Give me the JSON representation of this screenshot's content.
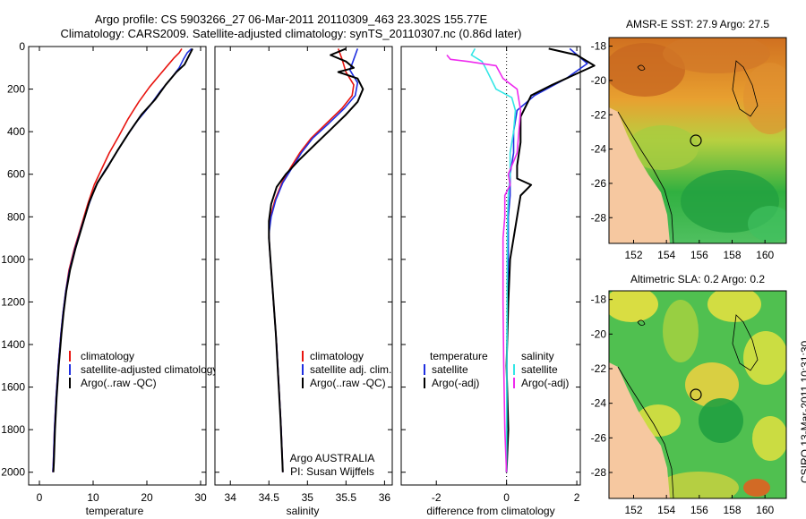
{
  "title_line1": "Argo profile: CS 5903266_27 06-Mar-2011 20110309_463 23.302S 155.77E",
  "title_line2": "Climatology: CARS2009. Satellite-adjusted climatology: synTS_20110307.nc (0.86d later)",
  "stamp": "CSIRO 13-Mar-2011 10:31:30",
  "colors": {
    "red": "#e8140f",
    "blue": "#1f2fe0",
    "black": "#000000",
    "cyan": "#33e6e6",
    "magenta": "#ee2bee",
    "land": "#f6c8a0"
  },
  "chart_data": [
    {
      "type": "line",
      "id": "temperature",
      "xlabel": "temperature",
      "ylabel": "",
      "xlim": [
        -2,
        31
      ],
      "ylim": [
        2060,
        0
      ],
      "xticks": [
        0,
        10,
        20,
        30
      ],
      "yticks": [
        0,
        200,
        400,
        600,
        800,
        1000,
        1200,
        1400,
        1600,
        1800,
        2000
      ],
      "legend": [
        "climatology",
        "satellite-adjusted climatology",
        "Argo(..raw -QC)"
      ],
      "series": [
        {
          "name": "climatology",
          "color": "red",
          "points": [
            [
              26.5,
              10
            ],
            [
              26,
              30
            ],
            [
              25,
              55
            ],
            [
              24,
              85
            ],
            [
              22.5,
              130
            ],
            [
              20.5,
              190
            ],
            [
              18.5,
              260
            ],
            [
              16.5,
              340
            ],
            [
              14.8,
              420
            ],
            [
              13,
              500
            ],
            [
              11.5,
              580
            ],
            [
              10.2,
              650
            ],
            [
              9,
              740
            ],
            [
              7.7,
              850
            ],
            [
              6.5,
              950
            ],
            [
              5.5,
              1050
            ],
            [
              4.9,
              1150
            ],
            [
              4.4,
              1250
            ],
            [
              4,
              1350
            ],
            [
              3.5,
              1500
            ],
            [
              3.1,
              1650
            ],
            [
              2.8,
              1800
            ],
            [
              2.6,
              1950
            ],
            [
              2.5,
              2000
            ]
          ]
        },
        {
          "name": "satellite-adjusted climatology",
          "color": "blue",
          "points": [
            [
              28.3,
              10
            ],
            [
              27.5,
              30
            ],
            [
              26.8,
              60
            ],
            [
              26,
              100
            ],
            [
              24.5,
              150
            ],
            [
              22.5,
              210
            ],
            [
              20.5,
              280
            ],
            [
              18.2,
              350
            ],
            [
              16,
              430
            ],
            [
              13.8,
              520
            ],
            [
              12,
              590
            ],
            [
              10.4,
              660
            ],
            [
              9.1,
              750
            ],
            [
              7.8,
              850
            ],
            [
              6.6,
              950
            ],
            [
              5.6,
              1050
            ],
            [
              4.9,
              1150
            ],
            [
              4.4,
              1250
            ],
            [
              4,
              1350
            ],
            [
              3.5,
              1500
            ],
            [
              3.1,
              1650
            ],
            [
              2.8,
              1800
            ],
            [
              2.6,
              1950
            ],
            [
              2.5,
              2000
            ]
          ]
        },
        {
          "name": "Argo(..raw -QC)",
          "color": "black",
          "points": [
            [
              28.5,
              10
            ],
            [
              28,
              35
            ],
            [
              27.5,
              60
            ],
            [
              27,
              85
            ],
            [
              25.5,
              120
            ],
            [
              23.5,
              180
            ],
            [
              21.5,
              250
            ],
            [
              19,
              320
            ],
            [
              16.8,
              400
            ],
            [
              14.5,
              490
            ],
            [
              12.6,
              570
            ],
            [
              10.8,
              640
            ],
            [
              9.3,
              730
            ],
            [
              8,
              840
            ],
            [
              6.7,
              950
            ],
            [
              5.7,
              1050
            ],
            [
              5,
              1150
            ],
            [
              4.5,
              1250
            ],
            [
              4.1,
              1350
            ],
            [
              3.6,
              1500
            ],
            [
              3.2,
              1650
            ],
            [
              2.9,
              1800
            ],
            [
              2.7,
              1950
            ],
            [
              2.6,
              2000
            ]
          ]
        }
      ]
    },
    {
      "type": "line",
      "id": "salinity",
      "xlabel": "salinity",
      "ylabel": "",
      "xlim": [
        33.8,
        36.1
      ],
      "ylim": [
        2060,
        0
      ],
      "xticks": [
        34,
        34.5,
        35,
        35.5,
        36
      ],
      "legend": [
        "climatology",
        "satellite adj. clim.",
        "Argo(..raw -QC)"
      ],
      "annotation": [
        "Argo AUSTRALIA",
        "PI: Susan Wijffels"
      ],
      "series": [
        {
          "name": "climatology",
          "color": "red",
          "points": [
            [
              35.4,
              10
            ],
            [
              35.45,
              60
            ],
            [
              35.5,
              120
            ],
            [
              35.6,
              180
            ],
            [
              35.58,
              230
            ],
            [
              35.45,
              290
            ],
            [
              35.25,
              360
            ],
            [
              35.05,
              430
            ],
            [
              34.9,
              500
            ],
            [
              34.78,
              570
            ],
            [
              34.67,
              640
            ],
            [
              34.58,
              720
            ],
            [
              34.52,
              800
            ],
            [
              34.5,
              880
            ],
            [
              34.51,
              950
            ],
            [
              34.53,
              1050
            ],
            [
              34.56,
              1200
            ],
            [
              34.6,
              1400
            ],
            [
              34.63,
              1600
            ],
            [
              34.66,
              1800
            ],
            [
              34.68,
              2000
            ]
          ]
        },
        {
          "name": "satellite adj. clim.",
          "color": "blue",
          "points": [
            [
              35.65,
              10
            ],
            [
              35.6,
              60
            ],
            [
              35.55,
              110
            ],
            [
              35.65,
              170
            ],
            [
              35.62,
              230
            ],
            [
              35.48,
              290
            ],
            [
              35.28,
              360
            ],
            [
              35.07,
              430
            ],
            [
              34.92,
              500
            ],
            [
              34.8,
              570
            ],
            [
              34.68,
              640
            ],
            [
              34.59,
              720
            ],
            [
              34.53,
              800
            ],
            [
              34.5,
              880
            ],
            [
              34.51,
              950
            ],
            [
              34.53,
              1050
            ],
            [
              34.56,
              1200
            ],
            [
              34.6,
              1400
            ],
            [
              34.63,
              1600
            ],
            [
              34.66,
              1800
            ],
            [
              34.68,
              2000
            ]
          ]
        },
        {
          "name": "Argo(..raw -QC)",
          "color": "black",
          "points": [
            [
              35.5,
              10
            ],
            [
              35.3,
              40
            ],
            [
              35.5,
              70
            ],
            [
              35.6,
              100
            ],
            [
              35.4,
              120
            ],
            [
              35.65,
              150
            ],
            [
              35.72,
              200
            ],
            [
              35.65,
              260
            ],
            [
              35.5,
              320
            ],
            [
              35.3,
              390
            ],
            [
              35.1,
              460
            ],
            [
              34.9,
              530
            ],
            [
              34.72,
              600
            ],
            [
              34.6,
              660
            ],
            [
              34.53,
              740
            ],
            [
              34.5,
              820
            ],
            [
              34.5,
              900
            ],
            [
              34.52,
              1000
            ],
            [
              34.55,
              1150
            ],
            [
              34.59,
              1350
            ],
            [
              34.62,
              1550
            ],
            [
              34.65,
              1750
            ],
            [
              34.68,
              2000
            ]
          ]
        }
      ]
    },
    {
      "type": "line",
      "id": "difference",
      "xlabel": "difference from climatology",
      "ylabel": "",
      "xlim": [
        -3,
        2.1
      ],
      "ylim": [
        2060,
        0
      ],
      "xticks": [
        -2,
        0,
        2
      ],
      "legend_temperature": [
        "temperature",
        "satellite",
        "Argo(-adj)"
      ],
      "legend_salinity": [
        "salinity",
        "satellite",
        "Argo(-adj)"
      ],
      "series": [
        {
          "name": "temperature satellite",
          "color": "blue",
          "points": [
            [
              1.8,
              10
            ],
            [
              2.3,
              80
            ],
            [
              1.7,
              150
            ],
            [
              0.8,
              230
            ],
            [
              0.3,
              300
            ],
            [
              0.2,
              400
            ],
            [
              0.2,
              500
            ],
            [
              0.1,
              600
            ],
            [
              0.1,
              700
            ],
            [
              0.05,
              800
            ],
            [
              0.05,
              1000
            ],
            [
              0.02,
              1200
            ],
            [
              0.01,
              1500
            ],
            [
              0,
              2000
            ]
          ]
        },
        {
          "name": "temperature Argo(-adj)",
          "color": "black",
          "points": [
            [
              1.2,
              10
            ],
            [
              2,
              40
            ],
            [
              2.5,
              90
            ],
            [
              2.1,
              120
            ],
            [
              1.3,
              180
            ],
            [
              0.7,
              230
            ],
            [
              0.4,
              330
            ],
            [
              0.4,
              450
            ],
            [
              0.3,
              560
            ],
            [
              0.3,
              620
            ],
            [
              0.7,
              650
            ],
            [
              0.4,
              700
            ],
            [
              0.3,
              800
            ],
            [
              0.2,
              900
            ],
            [
              0.1,
              1000
            ],
            [
              0.05,
              1200
            ],
            [
              0,
              1500
            ],
            [
              0.05,
              1800
            ],
            [
              0,
              2000
            ]
          ]
        },
        {
          "name": "salinity satellite",
          "color": "cyan",
          "points": [
            [
              -0.9,
              10
            ],
            [
              -1,
              40
            ],
            [
              -0.7,
              70
            ],
            [
              -0.6,
              100
            ],
            [
              -0.45,
              150
            ],
            [
              -0.3,
              200
            ],
            [
              0.15,
              240
            ],
            [
              0.25,
              300
            ],
            [
              0.2,
              400
            ],
            [
              0.1,
              500
            ],
            [
              0.1,
              600
            ],
            [
              0.05,
              700
            ],
            [
              0.03,
              800
            ],
            [
              0.02,
              1000
            ],
            [
              0.01,
              1500
            ],
            [
              0,
              2000
            ]
          ]
        },
        {
          "name": "salinity Argo(-adj)",
          "color": "magenta",
          "points": [
            [
              -1.7,
              40
            ],
            [
              -1.6,
              60
            ],
            [
              -1.1,
              70
            ],
            [
              -0.3,
              90
            ],
            [
              -0.1,
              150
            ],
            [
              0.3,
              200
            ],
            [
              0.4,
              300
            ],
            [
              0.35,
              400
            ],
            [
              0.3,
              500
            ],
            [
              0.05,
              600
            ],
            [
              0.1,
              650
            ],
            [
              -0.05,
              700
            ],
            [
              -0.05,
              800
            ],
            [
              -0.1,
              900
            ],
            [
              -0.1,
              1000
            ],
            [
              -0.1,
              1200
            ],
            [
              -0.08,
              1500
            ],
            [
              -0.05,
              1800
            ],
            [
              0,
              2000
            ]
          ]
        }
      ]
    },
    {
      "type": "heatmap",
      "id": "amsr-sst",
      "title": "AMSR-E SST: 27.9 Argo: 27.5",
      "xlim": [
        150.5,
        161.3
      ],
      "ylim": [
        -29.5,
        -17.5
      ],
      "xticks": [
        152,
        154,
        156,
        158,
        160
      ],
      "yticks": [
        -18,
        -20,
        -22,
        -24,
        -26,
        -28
      ],
      "marker": [
        155.77,
        -23.302
      ]
    },
    {
      "type": "heatmap",
      "id": "altimetric-sla",
      "title": "Altimetric SLA: 0.2 Argo: 0.2",
      "xlim": [
        150.5,
        161.3
      ],
      "ylim": [
        -29.5,
        -17.5
      ],
      "xticks": [
        152,
        154,
        156,
        158,
        160
      ],
      "yticks": [
        -18,
        -20,
        -22,
        -24,
        -26,
        -28
      ],
      "marker": [
        155.77,
        -23.302
      ]
    }
  ]
}
